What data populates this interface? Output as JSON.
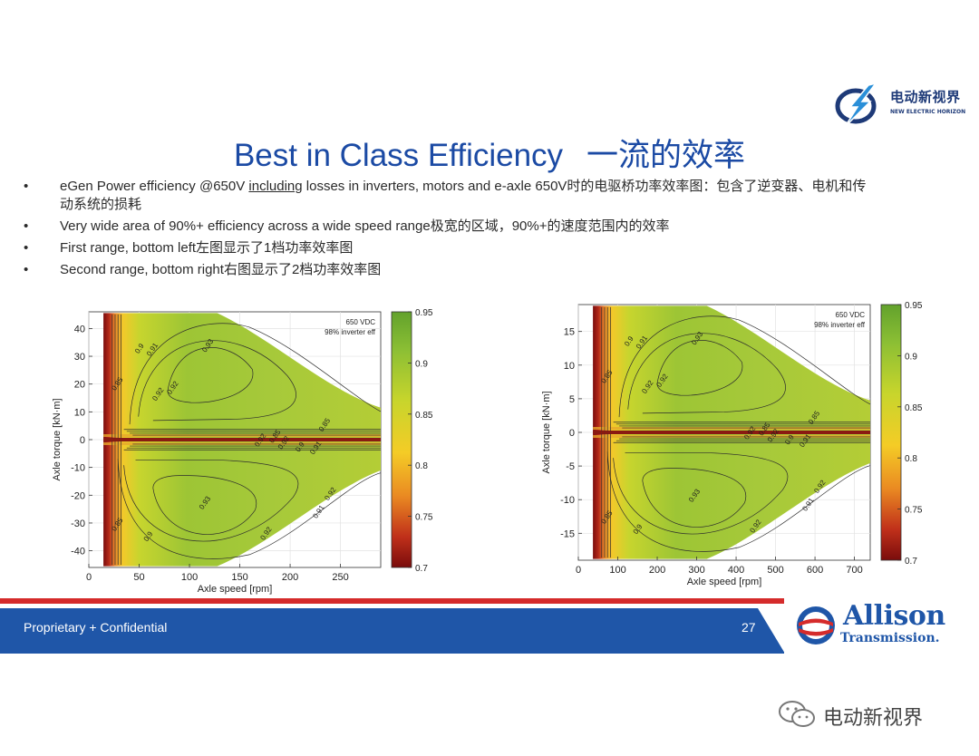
{
  "logo": {
    "cn": "电动新视界",
    "en": "NEW ELECTRIC HORIZON"
  },
  "title": {
    "en": "Best in Class Efficiency",
    "cn": "一流的效率"
  },
  "bullets": [
    {
      "before": "eGen Power efficiency @650V ",
      "underlined": "including",
      "after": " losses in inverters, motors and e-axle 650V时的电驱桥功率效率图：包含了逆变器、电机和传",
      "line2": "动系统的损耗"
    },
    {
      "text": "Very wide area of 90%+ efficiency across a wide speed range极宽的区域，90%+的速度范围内的效率"
    },
    {
      "text": "First range, bottom left左图显示了1档功率效率图"
    },
    {
      "text": "Second range, bottom right右图显示了2档功率效率图"
    }
  ],
  "bullet_symbol": "•",
  "chart_data": [
    {
      "type": "heatmap",
      "title": "",
      "xlabel": "Axle speed [rpm]",
      "ylabel": "Axle torque [kN·m]",
      "annotation": [
        "650 VDC",
        "98% inverter eff"
      ],
      "xlim": [
        0,
        290
      ],
      "ylim": [
        -46,
        46
      ],
      "xticks": [
        0,
        50,
        100,
        150,
        200,
        250
      ],
      "yticks": [
        40,
        30,
        20,
        10,
        0,
        -10,
        -20,
        -30,
        -40
      ],
      "colorbar": {
        "min": 0.7,
        "max": 0.95,
        "ticks": [
          0.95,
          0.9,
          0.85,
          0.8,
          0.75,
          0.7
        ]
      },
      "contour_labels": [
        "0.93",
        "0.93",
        "0.91",
        "0.91",
        "0.9",
        "0.9",
        "0.92",
        "0.92",
        "0.92",
        "0.92",
        "0.85",
        "0.85",
        "0.85",
        "0.85",
        "0.9",
        "0.91",
        "0.92",
        "0.92"
      ],
      "colors": {
        "low": "#8c1010",
        "mid": "#f2c521",
        "high": "#6bab2f"
      }
    },
    {
      "type": "heatmap",
      "title": "",
      "xlabel": "Axle speed [rpm]",
      "ylabel": "Axle torque [kN·m]",
      "annotation": [
        "650 VDC",
        "98% inverter eff"
      ],
      "xlim": [
        0,
        740
      ],
      "ylim": [
        -19,
        19
      ],
      "xticks": [
        0,
        100,
        200,
        300,
        400,
        500,
        600,
        700
      ],
      "yticks": [
        15,
        10,
        5,
        0,
        -5,
        -10,
        -15
      ],
      "colorbar": {
        "min": 0.7,
        "max": 0.95,
        "ticks": [
          0.95,
          0.9,
          0.85,
          0.8,
          0.75,
          0.7
        ]
      },
      "contour_labels": [
        "0.93",
        "0.93",
        "0.91",
        "0.91",
        "0.9",
        "0.9",
        "0.92",
        "0.92",
        "0.92",
        "0.92",
        "0.85",
        "0.85",
        "0.85",
        "0.85",
        "0.9",
        "0.91",
        "0.92",
        "0.92"
      ],
      "colors": {
        "low": "#8c1010",
        "mid": "#f2c521",
        "high": "#6bab2f"
      }
    }
  ],
  "footer": {
    "left": "Proprietary + Confidential",
    "page": "27"
  },
  "brand": {
    "name": "Allison",
    "sub": "Transmission."
  },
  "watermark": "电动新视界"
}
